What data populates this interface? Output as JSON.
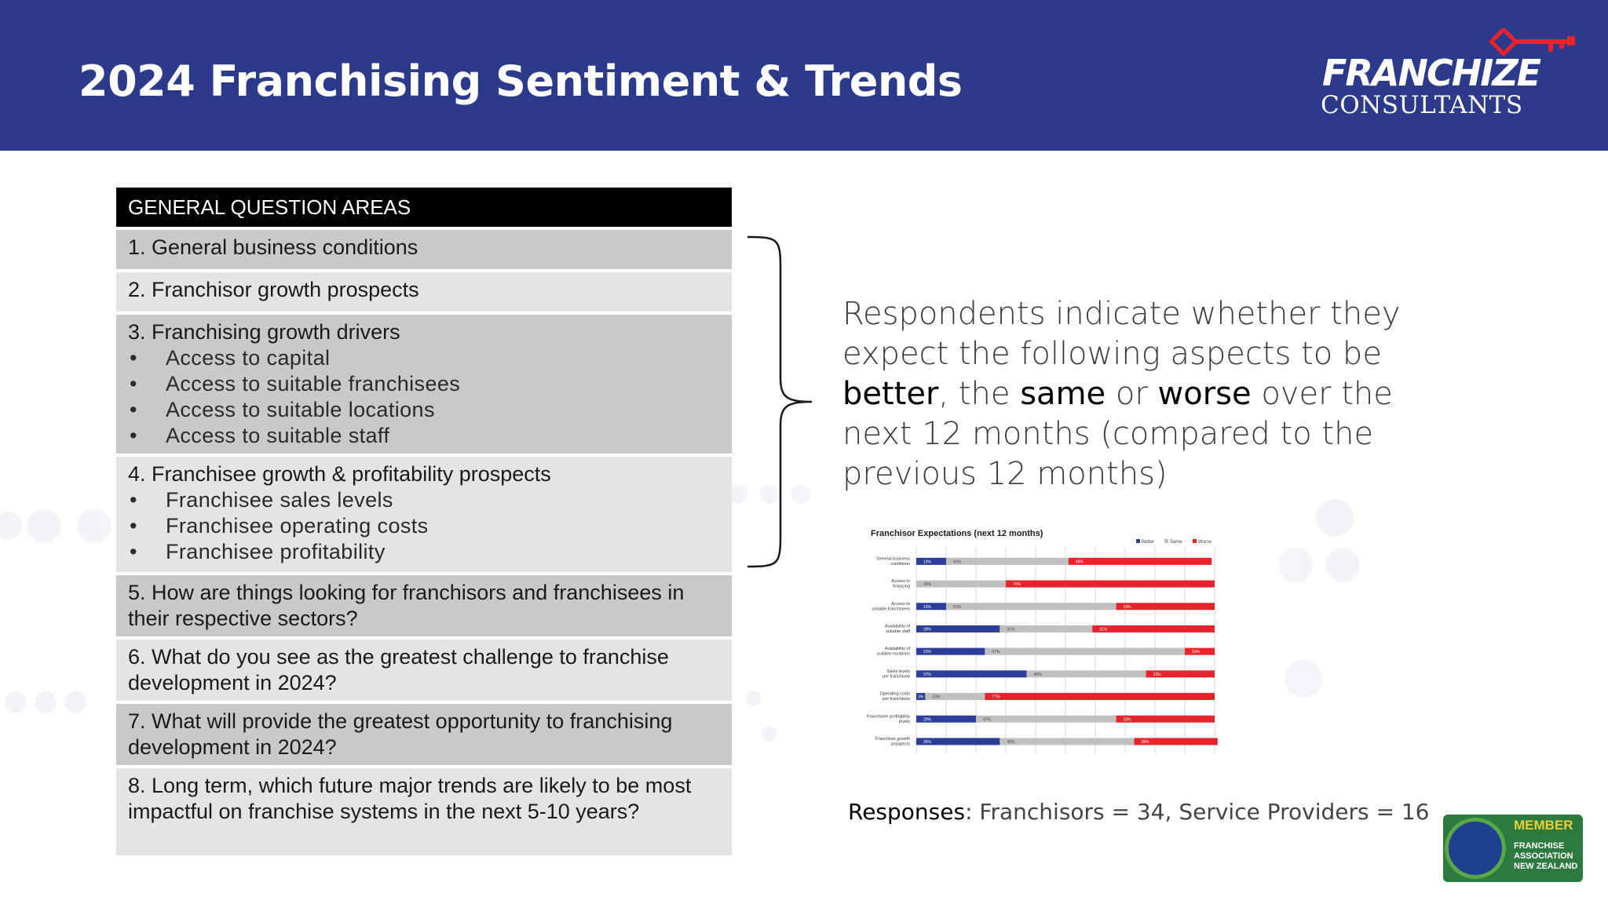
{
  "header": {
    "title": "2024 Franchising Sentiment & Trends",
    "logo_top": "FRANCHIZE",
    "logo_bottom": "CONSULTANTS",
    "bg_color": "#2c3a8c"
  },
  "table": {
    "header": "GENERAL QUESTION AREAS",
    "rows": [
      {
        "title": "1. General business conditions",
        "items": []
      },
      {
        "title": "2. Franchisor growth prospects",
        "items": []
      },
      {
        "title": "3. Franchising growth drivers",
        "items": [
          "Access to capital",
          "Access to suitable franchisees",
          "Access to suitable locations",
          "Access to suitable staff"
        ]
      },
      {
        "title": "4. Franchisee growth & profitability prospects",
        "items": [
          "Franchisee sales levels",
          "Franchisee operating costs",
          "Franchisee profitability"
        ]
      },
      {
        "title": "5. How are things looking for franchisors and franchisees in their respective sectors?",
        "items": []
      },
      {
        "title": "6. What do you see as the greatest challenge to franchise development in 2024?",
        "items": []
      },
      {
        "title": "7. What will provide the greatest opportunity to franchising development in 2024?",
        "items": []
      },
      {
        "title": "8. Long term, which future major trends are likely to be most impactful on franchise systems in the next 5-10 years?",
        "items": []
      }
    ],
    "bullet": "•"
  },
  "description": {
    "part1": "Respondents indicate whether they expect the following aspects to be ",
    "better": "better",
    "part2": ", the ",
    "same": "same",
    "part3": " or ",
    "worse": "worse",
    "part4": " over the next 12 months (compared to the previous 12 months)"
  },
  "responses": {
    "label": "Responses",
    "text": ": Franchisors = 34, Service Providers = 16"
  },
  "badge": {
    "member": "MEMBER",
    "line1": "FRANCHISE",
    "line2": "ASSOCIATION",
    "line3": "NEW ZEALAND"
  },
  "chart_data": {
    "type": "bar",
    "stacked": true,
    "orientation": "horizontal",
    "title": "Franchisor Expectations (next 12 months)",
    "categories": [
      "General business conditions",
      "Access to financing",
      "Access to suitable franchisees",
      "Availability of suitable staff",
      "Availability of suitable locations",
      "Sales levels per franchisee",
      "Operating costs per franchisee",
      "Franchisee profitability levels",
      "Franchisor growth prospects"
    ],
    "series": [
      {
        "name": "Better",
        "color": "#2b3f9a",
        "values": [
          10,
          0,
          10,
          28,
          23,
          37,
          3,
          20,
          28
        ]
      },
      {
        "name": "Same",
        "color": "#c0c0c0",
        "values": [
          41,
          30,
          57,
          31,
          67,
          40,
          20,
          47,
          45
        ]
      },
      {
        "name": "Worse",
        "color": "#e8232b",
        "values": [
          48,
          70,
          33,
          41,
          10,
          23,
          77,
          33,
          28
        ]
      }
    ],
    "value_labels": [
      [
        "10%",
        "",
        "10%",
        "28%",
        "23%",
        "37%",
        "3%",
        "20%",
        "28%"
      ],
      [
        "41%",
        "30%",
        "57%",
        "31%",
        "67%",
        "40%",
        "20%",
        "47%",
        "45%"
      ],
      [
        "48%",
        "70%",
        "33%",
        "41%",
        "10%",
        "23%",
        "77%",
        "33%",
        "28%"
      ]
    ],
    "xlim": [
      0,
      100
    ],
    "legend": "top-right",
    "grid": true
  }
}
